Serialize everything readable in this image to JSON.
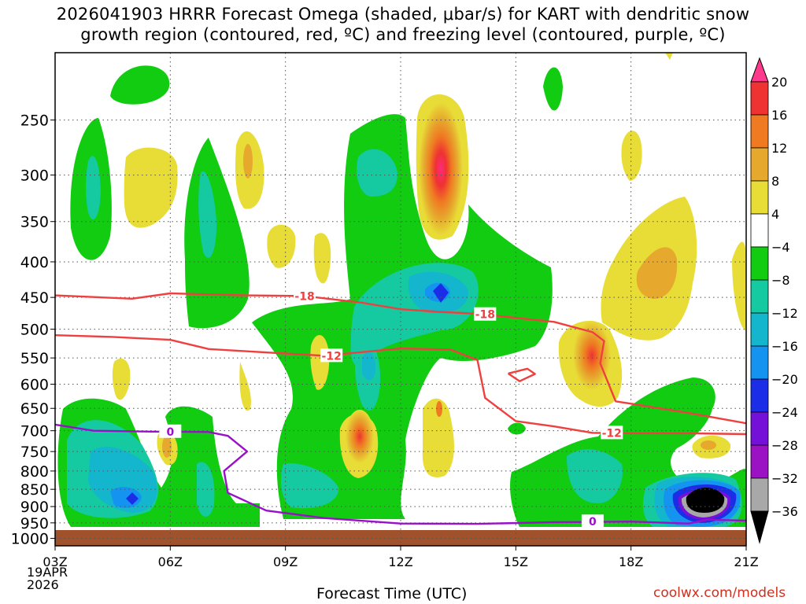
{
  "title_line1": "2026041903 HRRR Forecast Omega (shaded, μbar/s) for KART with dendritic snow",
  "title_line2": "growth region (contoured, red, ºC) and freezing level (contoured, purple, ºC)",
  "credit": "coolwx.com/models",
  "chart_data": {
    "type": "heatmap",
    "title": "2026041903 HRRR Forecast Omega (shaded, μbar/s) for KART with dendritic snow growth region (contoured, red, ºC) and freezing level (contoured, purple, ºC)",
    "xlabel": "Forecast Time (UTC)",
    "ylabel": "",
    "x_ticks": [
      "03Z",
      "06Z",
      "09Z",
      "12Z",
      "15Z",
      "18Z",
      "21Z"
    ],
    "x_range_hours": [
      3,
      21
    ],
    "x_date_lines": [
      "19APR",
      "2026"
    ],
    "y_ticks": [
      250,
      300,
      350,
      400,
      450,
      500,
      550,
      600,
      650,
      700,
      750,
      800,
      850,
      900,
      950,
      1000
    ],
    "y_range_mb": [
      200,
      1025
    ],
    "y_scale": "log-pressure",
    "grid": true,
    "surface_fill_color": "#a0522d",
    "colorbar": {
      "labels": [
        "20",
        "16",
        "12",
        "8",
        "4",
        "−4",
        "−8",
        "−12",
        "−16",
        "−20",
        "−24",
        "−28",
        "−32",
        "−36"
      ],
      "levels": [
        20,
        16,
        12,
        8,
        4,
        -4,
        -8,
        -12,
        -16,
        -20,
        -24,
        -28,
        -32,
        -36
      ],
      "colors": [
        "#ff3a8c",
        "#ef3232",
        "#ef7a22",
        "#e6a92e",
        "#e8dc37",
        "#ffffff",
        "#11cc11",
        "#15c9a0",
        "#13b6cc",
        "#1493f0",
        "#1b2de6",
        "#7410d8",
        "#9b12c4",
        "#a8a8a8",
        "#000000"
      ]
    },
    "red_contours": [
      {
        "label": "-18",
        "values": [
          [
            3,
            447
          ],
          [
            5,
            452
          ],
          [
            6,
            444
          ],
          [
            8,
            447
          ],
          [
            9.5,
            448
          ],
          [
            11,
            458
          ],
          [
            12,
            468
          ],
          [
            13,
            472
          ],
          [
            14,
            475
          ],
          [
            16,
            488
          ],
          [
            17,
            505
          ],
          [
            17.3,
            520
          ],
          [
            17.2,
            560
          ],
          [
            17.6,
            635
          ],
          [
            18,
            640
          ],
          [
            19.5,
            660
          ],
          [
            21,
            683
          ]
        ]
      },
      {
        "label": "-12",
        "values": [
          [
            3,
            510
          ],
          [
            4.5,
            513
          ],
          [
            6,
            518
          ],
          [
            7,
            534
          ],
          [
            8,
            538
          ],
          [
            10,
            546
          ],
          [
            12,
            533
          ],
          [
            13.3,
            535
          ],
          [
            14,
            554
          ],
          [
            14.2,
            628
          ],
          [
            15,
            678
          ],
          [
            16,
            690
          ],
          [
            17,
            705
          ],
          [
            18,
            706
          ],
          [
            19.5,
            706
          ],
          [
            21,
            708
          ]
        ]
      },
      {
        "label": "",
        "values": [
          [
            14.8,
            579
          ],
          [
            15.3,
            570
          ],
          [
            15.5,
            580
          ],
          [
            15.1,
            594
          ],
          [
            14.8,
            579
          ]
        ]
      }
    ],
    "purple_contours": [
      {
        "label": "0",
        "values": [
          [
            3,
            686
          ],
          [
            4,
            700
          ],
          [
            5.5,
            702
          ],
          [
            7,
            703
          ],
          [
            7.5,
            712
          ],
          [
            8,
            750
          ],
          [
            7.4,
            800
          ],
          [
            7.5,
            860
          ],
          [
            8.5,
            912
          ],
          [
            10,
            935
          ],
          [
            12,
            952
          ],
          [
            14,
            953
          ],
          [
            16,
            948
          ],
          [
            18,
            946
          ],
          [
            19.5,
            952
          ],
          [
            20,
            940
          ],
          [
            21,
            943
          ]
        ]
      }
    ],
    "shaded_features": [
      {
        "t": 4,
        "p": 900,
        "omega": -20
      },
      {
        "t": 5,
        "p": 900,
        "omega": -24
      },
      {
        "t": 7,
        "p": 330,
        "omega": -12
      },
      {
        "t": 11,
        "p": 565,
        "omega": -16
      },
      {
        "t": 13,
        "p": 450,
        "omega": -20
      },
      {
        "t": 13,
        "p": 320,
        "omega": 20
      },
      {
        "t": 11,
        "p": 745,
        "omega": 12
      },
      {
        "t": 17,
        "p": 560,
        "omega": 12
      },
      {
        "t": 18.5,
        "p": 420,
        "omega": 8
      },
      {
        "t": 20,
        "p": 920,
        "omega": -36
      }
    ]
  }
}
